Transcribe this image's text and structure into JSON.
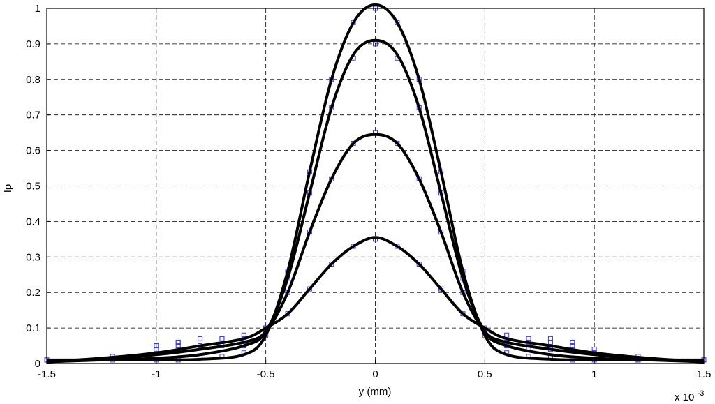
{
  "chart_data": {
    "type": "scatter",
    "xlabel": "y (mm)",
    "ylabel": "Ip",
    "xscale_label": "x 10",
    "xscale_exponent": "-3",
    "xlim": [
      -1.5,
      1.5
    ],
    "ylim": [
      0,
      1
    ],
    "xticks": [
      "-1.5",
      "-1",
      "-0.5",
      "0",
      "0.5",
      "1",
      "1.5"
    ],
    "xtick_values": [
      -1.5,
      -1,
      -0.5,
      0,
      0.5,
      1,
      1.5
    ],
    "yticks": [
      "0",
      "0.1",
      "0.2",
      "0.3",
      "0.4",
      "0.5",
      "0.6",
      "0.7",
      "0.8",
      "0.9",
      "1"
    ],
    "ytick_values": [
      0,
      0.1,
      0.2,
      0.3,
      0.4,
      0.5,
      0.6,
      0.7,
      0.8,
      0.9,
      1
    ],
    "grid": true,
    "marker_color": "#3a3af0",
    "line_color": "#000000",
    "fit_curves": [
      {
        "x": [
          -1.5,
          -1.25,
          -1.0,
          -0.8,
          -0.6,
          -0.5,
          -0.4,
          -0.3,
          -0.2,
          -0.1,
          0.0,
          0.1,
          0.2,
          0.3,
          0.4,
          0.5,
          0.6,
          0.8,
          1.0,
          1.25,
          1.5
        ],
        "y": [
          0.01,
          0.01,
          0.01,
          0.012,
          0.025,
          0.08,
          0.26,
          0.54,
          0.8,
          0.96,
          1.01,
          0.96,
          0.8,
          0.54,
          0.26,
          0.08,
          0.025,
          0.012,
          0.01,
          0.01,
          0.01
        ]
      },
      {
        "x": [
          -1.5,
          -1.25,
          -1.0,
          -0.8,
          -0.6,
          -0.5,
          -0.4,
          -0.3,
          -0.2,
          -0.1,
          0.0,
          0.1,
          0.2,
          0.3,
          0.4,
          0.5,
          0.6,
          0.8,
          1.0,
          1.25,
          1.5
        ],
        "y": [
          0.005,
          0.01,
          0.015,
          0.025,
          0.05,
          0.09,
          0.24,
          0.48,
          0.72,
          0.87,
          0.91,
          0.87,
          0.72,
          0.48,
          0.24,
          0.09,
          0.05,
          0.025,
          0.015,
          0.01,
          0.005
        ]
      },
      {
        "x": [
          -1.5,
          -1.25,
          -1.0,
          -0.8,
          -0.6,
          -0.5,
          -0.4,
          -0.3,
          -0.2,
          -0.1,
          0.0,
          0.1,
          0.2,
          0.3,
          0.4,
          0.5,
          0.6,
          0.8,
          1.0,
          1.25,
          1.5
        ],
        "y": [
          0.005,
          0.012,
          0.025,
          0.04,
          0.06,
          0.09,
          0.2,
          0.37,
          0.52,
          0.62,
          0.645,
          0.62,
          0.52,
          0.37,
          0.2,
          0.09,
          0.06,
          0.04,
          0.025,
          0.012,
          0.005
        ]
      },
      {
        "x": [
          -1.5,
          -1.25,
          -1.0,
          -0.8,
          -0.6,
          -0.5,
          -0.4,
          -0.3,
          -0.2,
          -0.1,
          0.0,
          0.1,
          0.2,
          0.3,
          0.4,
          0.5,
          0.6,
          0.8,
          1.0,
          1.25,
          1.5
        ],
        "y": [
          0.005,
          0.015,
          0.03,
          0.05,
          0.07,
          0.1,
          0.14,
          0.21,
          0.28,
          0.33,
          0.355,
          0.33,
          0.28,
          0.21,
          0.14,
          0.1,
          0.07,
          0.05,
          0.03,
          0.015,
          0.005
        ]
      }
    ],
    "data_points": [
      {
        "x": [
          -1.5,
          -1.2,
          -1.0,
          -0.9,
          -0.8,
          -0.7,
          -0.6,
          -0.5,
          -0.4,
          -0.3,
          -0.2,
          -0.1,
          0.0,
          0.1,
          0.2,
          0.3,
          0.4,
          0.5,
          0.6,
          0.7,
          0.8,
          0.9,
          1.0,
          1.2,
          1.5
        ],
        "y": [
          0.01,
          0.01,
          0.01,
          0.01,
          0.02,
          0.02,
          0.03,
          0.08,
          0.26,
          0.54,
          0.8,
          0.96,
          1.0,
          0.96,
          0.8,
          0.54,
          0.26,
          0.08,
          0.03,
          0.02,
          0.02,
          0.01,
          0.01,
          0.01,
          0.01
        ]
      },
      {
        "x": [
          -1.5,
          -1.2,
          -1.0,
          -0.9,
          -0.8,
          -0.7,
          -0.6,
          -0.5,
          -0.4,
          -0.3,
          -0.2,
          -0.1,
          0.0,
          0.1,
          0.2,
          0.3,
          0.4,
          0.5,
          0.6,
          0.7,
          0.8,
          0.9,
          1.0,
          1.2,
          1.5
        ],
        "y": [
          0.01,
          0.02,
          0.04,
          0.05,
          0.05,
          0.05,
          0.05,
          0.09,
          0.24,
          0.48,
          0.72,
          0.86,
          0.9,
          0.86,
          0.72,
          0.48,
          0.24,
          0.09,
          0.05,
          0.04,
          0.04,
          0.04,
          0.03,
          0.01,
          0.01
        ]
      },
      {
        "x": [
          -1.5,
          -1.2,
          -1.0,
          -0.9,
          -0.8,
          -0.7,
          -0.6,
          -0.5,
          -0.4,
          -0.3,
          -0.2,
          -0.1,
          0.0,
          0.1,
          0.2,
          0.3,
          0.4,
          0.5,
          0.6,
          0.7,
          0.8,
          0.9,
          1.0,
          1.2,
          1.5
        ],
        "y": [
          0.01,
          0.02,
          0.05,
          0.06,
          0.07,
          0.07,
          0.07,
          0.1,
          0.2,
          0.37,
          0.52,
          0.62,
          0.65,
          0.62,
          0.52,
          0.37,
          0.2,
          0.09,
          0.06,
          0.06,
          0.06,
          0.05,
          0.03,
          0.01,
          0.01
        ]
      },
      {
        "x": [
          -1.5,
          -1.2,
          -1.0,
          -0.9,
          -0.8,
          -0.7,
          -0.6,
          -0.5,
          -0.4,
          -0.3,
          -0.2,
          -0.1,
          0.0,
          0.1,
          0.2,
          0.3,
          0.4,
          0.5,
          0.6,
          0.7,
          0.8,
          0.9,
          1.0,
          1.2,
          1.5
        ],
        "y": [
          0.01,
          0.02,
          0.05,
          0.06,
          0.07,
          0.07,
          0.08,
          0.1,
          0.14,
          0.21,
          0.28,
          0.33,
          0.35,
          0.33,
          0.28,
          0.21,
          0.14,
          0.1,
          0.08,
          0.07,
          0.07,
          0.06,
          0.04,
          0.02,
          0.01
        ]
      }
    ]
  }
}
